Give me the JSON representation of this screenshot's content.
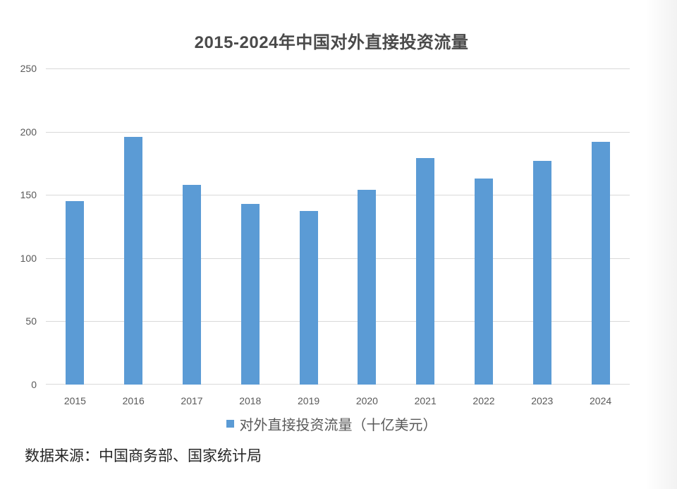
{
  "chart_data": {
    "type": "bar",
    "title": "2015-2024年中国对外直接投资流量",
    "categories": [
      "2015",
      "2016",
      "2017",
      "2018",
      "2019",
      "2020",
      "2021",
      "2022",
      "2023",
      "2024"
    ],
    "values": [
      145,
      196,
      158,
      143,
      137,
      154,
      179,
      163,
      177,
      192
    ],
    "series_name": "对外直接投资流量（十亿美元）",
    "xlabel": "",
    "ylabel": "",
    "ylim": [
      0,
      250
    ],
    "yticks": [
      0,
      50,
      100,
      150,
      200,
      250
    ],
    "grid": true,
    "legend_position": "bottom",
    "colors": {
      "bar": "#5B9BD5",
      "gridline": "#D9D9D9",
      "tick_label": "#595959",
      "title": "#4A4A4A",
      "legend_label": "#595959",
      "source_text": "#262626"
    }
  },
  "source_note": {
    "text": "数据来源：中国商务部、国家统计局"
  }
}
